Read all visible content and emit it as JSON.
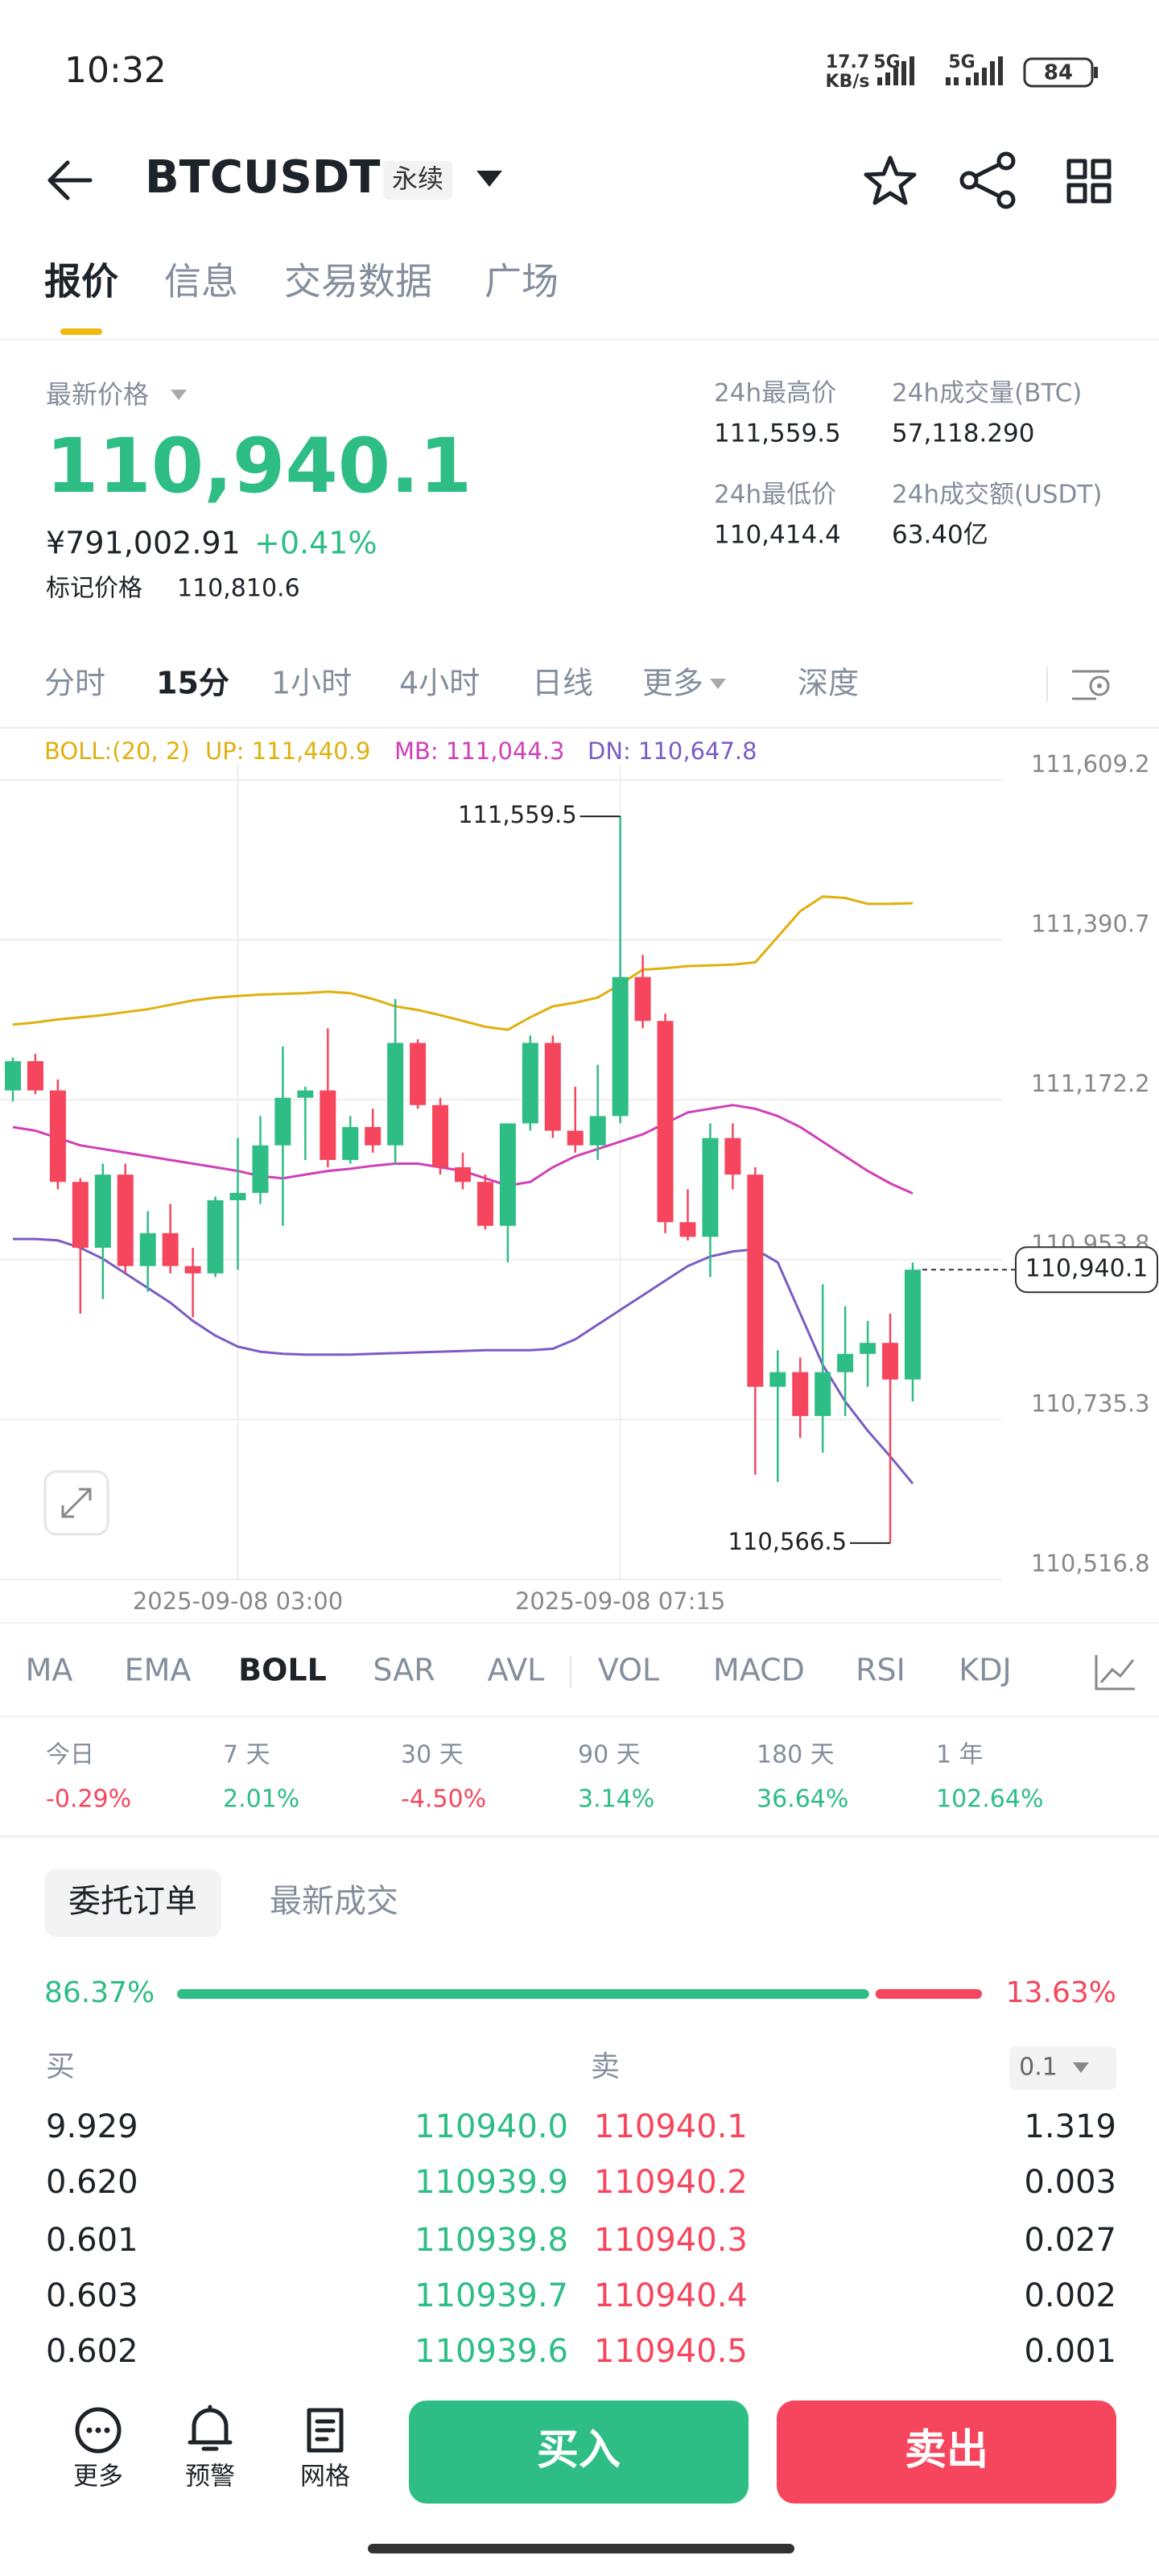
{
  "status_bar": {
    "time": "10:32",
    "speed": "17.7",
    "speed_unit": "KB/s",
    "network_1": "5G",
    "network_2": "5G",
    "battery": "84"
  },
  "header": {
    "symbol": "BTCUSDT",
    "contract": "永续"
  },
  "tabs": [
    "报价",
    "信息",
    "交易数据",
    "广场"
  ],
  "price_panel": {
    "label": "最新价格",
    "last_price": "110,940.1",
    "cny_price": "¥791,002.91",
    "change": "+0.41%",
    "mark_label": "标记价格",
    "mark_price": "110,810.6"
  },
  "stats": [
    {
      "label": "24h最高价",
      "value": "111,559.5"
    },
    {
      "label": "24h成交量(BTC)",
      "value": "57,118.290"
    },
    {
      "label": "24h最低价",
      "value": "110,414.4"
    },
    {
      "label": "24h成交额(USDT)",
      "value": "63.40亿"
    }
  ],
  "intervals": [
    "分时",
    "15分",
    "1小时",
    "4小时",
    "日线",
    "更多",
    "深度"
  ],
  "chart_data": {
    "type": "candlestick",
    "indicator": "BOLL:(20, 2)",
    "x": [
      null,
      null,
      null,
      null,
      null,
      null,
      null,
      null,
      null,
      null,
      "2025-09-08 03:00",
      null,
      null,
      null,
      null,
      null,
      null,
      null,
      null,
      null,
      null,
      null,
      null,
      null,
      null,
      null,
      null,
      "2025-09-08 07:15",
      null,
      null,
      null,
      null,
      null,
      null,
      null,
      null,
      null,
      null,
      null,
      null,
      null
    ],
    "open": [
      111185,
      111225,
      111185,
      111060,
      110970,
      111070,
      110945,
      110990,
      110945,
      110935,
      111035,
      111045,
      111110,
      111175,
      111185,
      111090,
      111135,
      111110,
      111250,
      111165,
      111080,
      111060,
      111000,
      111140,
      111250,
      111130,
      111110,
      111150,
      111340,
      111280,
      111005,
      110985,
      111120,
      111070,
      110780,
      110800,
      110740,
      110800,
      110825,
      110840,
      110790
    ],
    "high": [
      111230,
      111235,
      111200,
      111065,
      111085,
      111085,
      111020,
      111030,
      110970,
      111040,
      111120,
      111150,
      111245,
      111190,
      111270,
      111150,
      111160,
      111310,
      111255,
      111175,
      111100,
      111070,
      111140,
      111260,
      111260,
      111190,
      111220,
      111559.5,
      111370,
      111290,
      111050,
      111140,
      111140,
      111080,
      110830,
      110820,
      110920,
      110890,
      110870,
      110880,
      110950
    ],
    "low": [
      111170,
      111180,
      111050,
      110880,
      110900,
      110935,
      110910,
      110935,
      110875,
      110930,
      110940,
      111030,
      111000,
      111090,
      111080,
      111085,
      111100,
      111085,
      111160,
      111070,
      111050,
      110995,
      110950,
      111130,
      111120,
      111100,
      111090,
      111140,
      111270,
      110990,
      110980,
      110930,
      111050,
      110660,
      110650,
      110710,
      110690,
      110740,
      110780,
      110566.5,
      110760
    ],
    "close": [
      111225,
      111185,
      111060,
      110970,
      111070,
      110945,
      110990,
      110945,
      110935,
      111035,
      111045,
      111110,
      111175,
      111185,
      111090,
      111135,
      111110,
      111250,
      111165,
      111080,
      111060,
      111000,
      111140,
      111250,
      111130,
      111110,
      111150,
      111340,
      111280,
      111005,
      110985,
      111120,
      111070,
      110780,
      110800,
      110740,
      110800,
      110825,
      110840,
      110790,
      110940.1
    ],
    "up_color": "#2ebd85",
    "down_color": "#f6465d",
    "series": [
      {
        "name": "UP: 111,440.9",
        "color": "#e0b00f",
        "values": [
          111275,
          111278,
          111282,
          111285,
          111288,
          111292,
          111296,
          111302,
          111308,
          111312,
          111314,
          111316,
          111317,
          111318,
          111320,
          111318,
          111310,
          111300,
          111295,
          111288,
          111280,
          111272,
          111268,
          111285,
          111300,
          111305,
          111312,
          111330,
          111350,
          111352,
          111355,
          111356,
          111357,
          111360,
          111395,
          111430,
          111450,
          111448,
          111440,
          111440,
          111440.9
        ]
      },
      {
        "name": "MB: 111,044.3",
        "color": "#d040b8",
        "values": [
          111135,
          111130,
          111120,
          111110,
          111105,
          111100,
          111095,
          111090,
          111085,
          111080,
          111075,
          111068,
          111065,
          111070,
          111075,
          111078,
          111082,
          111085,
          111085,
          111080,
          111075,
          111065,
          111055,
          111060,
          111080,
          111095,
          111105,
          111115,
          111125,
          111140,
          111155,
          111160,
          111165,
          111160,
          111150,
          111135,
          111115,
          111095,
          111075,
          111058,
          111044.3
        ]
      },
      {
        "name": "DN: 110,647.8",
        "color": "#7b5cc4",
        "values": [
          110982,
          110982,
          110980,
          110970,
          110955,
          110935,
          110915,
          110895,
          110870,
          110850,
          110835,
          110828,
          110825,
          110824,
          110824,
          110824,
          110825,
          110826,
          110827,
          110828,
          110829,
          110830,
          110830,
          110830,
          110832,
          110845,
          110865,
          110885,
          110905,
          110925,
          110945,
          110958,
          110965,
          110968,
          110950,
          110880,
          110810,
          110760,
          110720,
          110685,
          110647.8
        ]
      }
    ],
    "ylim": [
      110516.8,
      111609.2
    ],
    "yticks": [
      {
        "value": 110516.8,
        "label": "110,516.8"
      },
      {
        "value": 110735.3,
        "label": "110,735.3"
      },
      {
        "value": 110953.8,
        "label": "110,953.8"
      },
      {
        "value": 111172.2,
        "label": "111,172.2"
      },
      {
        "value": 111390.7,
        "label": "111,390.7"
      },
      {
        "value": 111609.2,
        "label": "111,609.2"
      }
    ],
    "grid": true,
    "high_marker": {
      "value": 111559.5,
      "label": "111,559.5"
    },
    "low_marker": {
      "value": 110566.5,
      "label": "110,566.5"
    },
    "last_price": {
      "value": 110940.1,
      "label": "110,940.1"
    }
  },
  "indicators": [
    "MA",
    "EMA",
    "BOLL",
    "SAR",
    "AVL",
    "VOL",
    "MACD",
    "RSI",
    "KDJ"
  ],
  "performance": [
    {
      "period": "今日",
      "change": "-0.29%"
    },
    {
      "period": "7 天",
      "change": "2.01%"
    },
    {
      "period": "30 天",
      "change": "-4.50%"
    },
    {
      "period": "90 天",
      "change": "3.14%"
    },
    {
      "period": "180 天",
      "change": "36.64%"
    },
    {
      "period": "1 年",
      "change": "102.64%"
    }
  ],
  "order_book": {
    "tabs": [
      "委托订单",
      "最新成交"
    ],
    "bid_ratio": {
      "value": 86.37,
      "label": "86.37%"
    },
    "ask_ratio": {
      "value": 13.63,
      "label": "13.63%"
    },
    "bid_header": "买",
    "ask_header": "卖",
    "precision": "0.1",
    "rows": [
      [
        "9.929",
        "110940.0",
        "110940.1",
        "1.319"
      ],
      [
        "0.620",
        "110939.9",
        "110940.2",
        "0.003"
      ],
      [
        "0.601",
        "110939.8",
        "110940.3",
        "0.027"
      ],
      [
        "0.603",
        "110939.7",
        "110940.4",
        "0.002"
      ],
      [
        "0.602",
        "110939.6",
        "110940.5",
        "0.001"
      ]
    ]
  },
  "bottom_bar": {
    "actions": [
      "更多",
      "预警",
      "网格"
    ],
    "buy": "买入",
    "sell": "卖出"
  }
}
